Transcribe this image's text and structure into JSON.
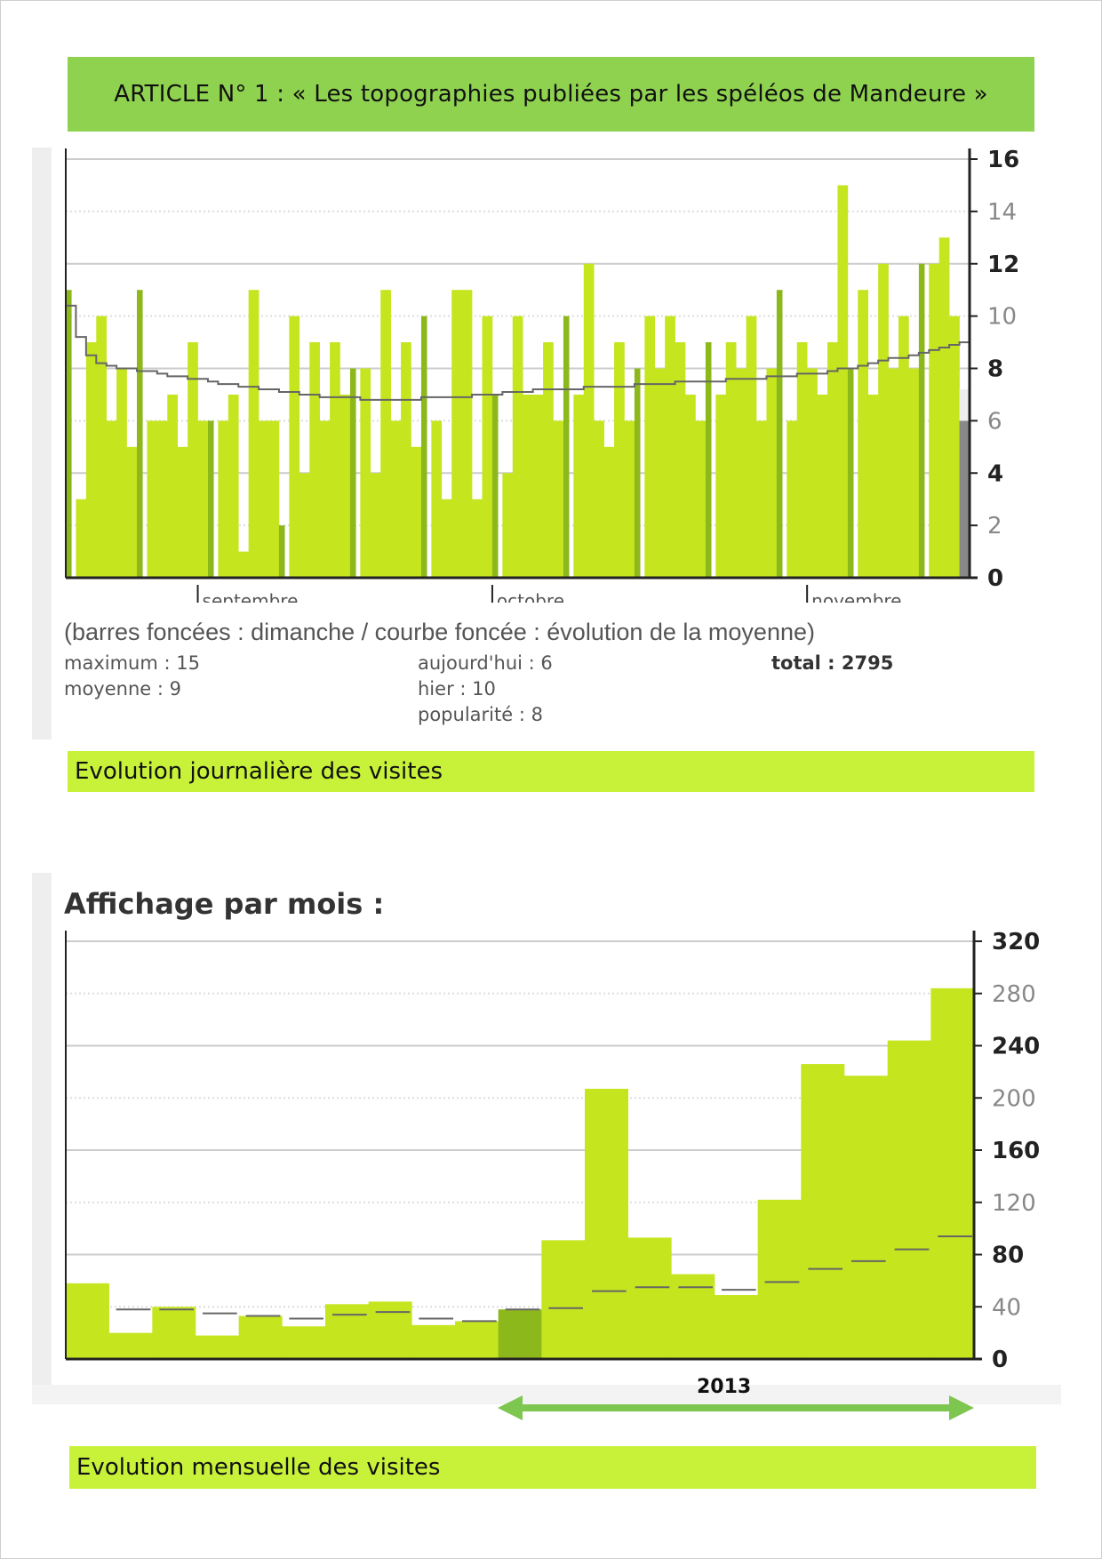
{
  "page_title": "ARTICLE N° 1 : «  Les topographies publiées par les spéléos de Mandeure »",
  "daily": {
    "caption": "Evolution journalière des visites",
    "note": "(barres foncées : dimanche / courbe foncée : évolution de la moyenne)",
    "stats": {
      "maximum": "maximum : 15",
      "moyenne": "moyenne : 9",
      "aujourdhui": "aujourd'hui : 6",
      "hier": "hier : 10",
      "popularite": "popularité : 8",
      "total": "total : 2795"
    },
    "months": [
      "septembre",
      "octobre",
      "novembre"
    ]
  },
  "monthly": {
    "title": "Affichage par mois :",
    "caption": "Evolution mensuelle des visites",
    "year_label": "2013"
  },
  "colors": {
    "banner": "#8fd24f",
    "caption": "#c8f23a",
    "bar": "#c5e51f",
    "bar_dark": "#8db81b",
    "mean_line": "#666666",
    "arrow": "#7dc650"
  },
  "chart_data": [
    {
      "type": "bar",
      "ylim": [
        0,
        16
      ],
      "yticks": [
        "0",
        "2",
        "4",
        "6",
        "8",
        "10",
        "12",
        "14",
        "16"
      ],
      "x_labels": [
        "septembre",
        "octobre",
        "novembre"
      ],
      "grid": true,
      "y_axis_position": "right",
      "values": [
        11,
        3,
        9,
        10,
        6,
        8,
        5,
        11,
        6,
        6,
        7,
        5,
        9,
        6,
        6,
        6,
        7,
        1,
        11,
        6,
        6,
        2,
        10,
        4,
        9,
        6,
        9,
        7,
        8,
        8,
        4,
        11,
        6,
        9,
        5,
        10,
        6,
        3,
        11,
        11,
        3,
        10,
        7,
        4,
        10,
        7,
        7,
        9,
        6,
        10,
        7,
        12,
        6,
        5,
        9,
        6,
        8,
        10,
        8,
        10,
        9,
        7,
        6,
        9,
        7,
        9,
        8,
        10,
        6,
        8,
        11,
        6,
        9,
        8,
        7,
        9,
        15,
        8,
        11,
        7,
        12,
        8,
        10,
        8,
        12,
        12,
        13,
        10,
        6
      ],
      "sundays": [
        0,
        7,
        14,
        21,
        28,
        35,
        42,
        49,
        56,
        63,
        70,
        77,
        84
      ],
      "today_index": 88,
      "mean": [
        10.4,
        9.2,
        8.5,
        8.2,
        8.1,
        8.0,
        8.0,
        7.9,
        7.9,
        7.8,
        7.7,
        7.7,
        7.6,
        7.6,
        7.5,
        7.4,
        7.4,
        7.3,
        7.3,
        7.2,
        7.2,
        7.1,
        7.1,
        7.0,
        7.0,
        6.9,
        6.9,
        6.9,
        6.9,
        6.8,
        6.8,
        6.8,
        6.8,
        6.8,
        6.8,
        6.9,
        6.9,
        6.9,
        6.9,
        6.9,
        7.0,
        7.0,
        7.0,
        7.1,
        7.1,
        7.1,
        7.2,
        7.2,
        7.2,
        7.2,
        7.2,
        7.3,
        7.3,
        7.3,
        7.3,
        7.3,
        7.4,
        7.4,
        7.4,
        7.4,
        7.5,
        7.5,
        7.5,
        7.5,
        7.5,
        7.6,
        7.6,
        7.6,
        7.6,
        7.7,
        7.7,
        7.7,
        7.8,
        7.8,
        7.8,
        7.9,
        8.0,
        8.0,
        8.1,
        8.2,
        8.3,
        8.4,
        8.4,
        8.5,
        8.6,
        8.7,
        8.8,
        8.9,
        9.0
      ],
      "today_marker": 7.2
    },
    {
      "type": "bar",
      "title": "Affichage par mois :",
      "ylim": [
        0,
        320
      ],
      "yticks": [
        "0",
        "40",
        "80",
        "120",
        "160",
        "200",
        "240",
        "280",
        "320"
      ],
      "grid": true,
      "y_axis_position": "right",
      "values": [
        58,
        20,
        40,
        18,
        33,
        25,
        42,
        44,
        26,
        29,
        38,
        91,
        207,
        93,
        65,
        49,
        122,
        226,
        217,
        244,
        284
      ],
      "dark_indices": [
        10
      ],
      "mean": [
        null,
        38,
        38,
        35,
        33,
        31,
        34,
        36,
        31,
        29,
        38,
        39,
        52,
        55,
        55,
        53,
        59,
        69,
        75,
        84,
        94
      ]
    }
  ]
}
